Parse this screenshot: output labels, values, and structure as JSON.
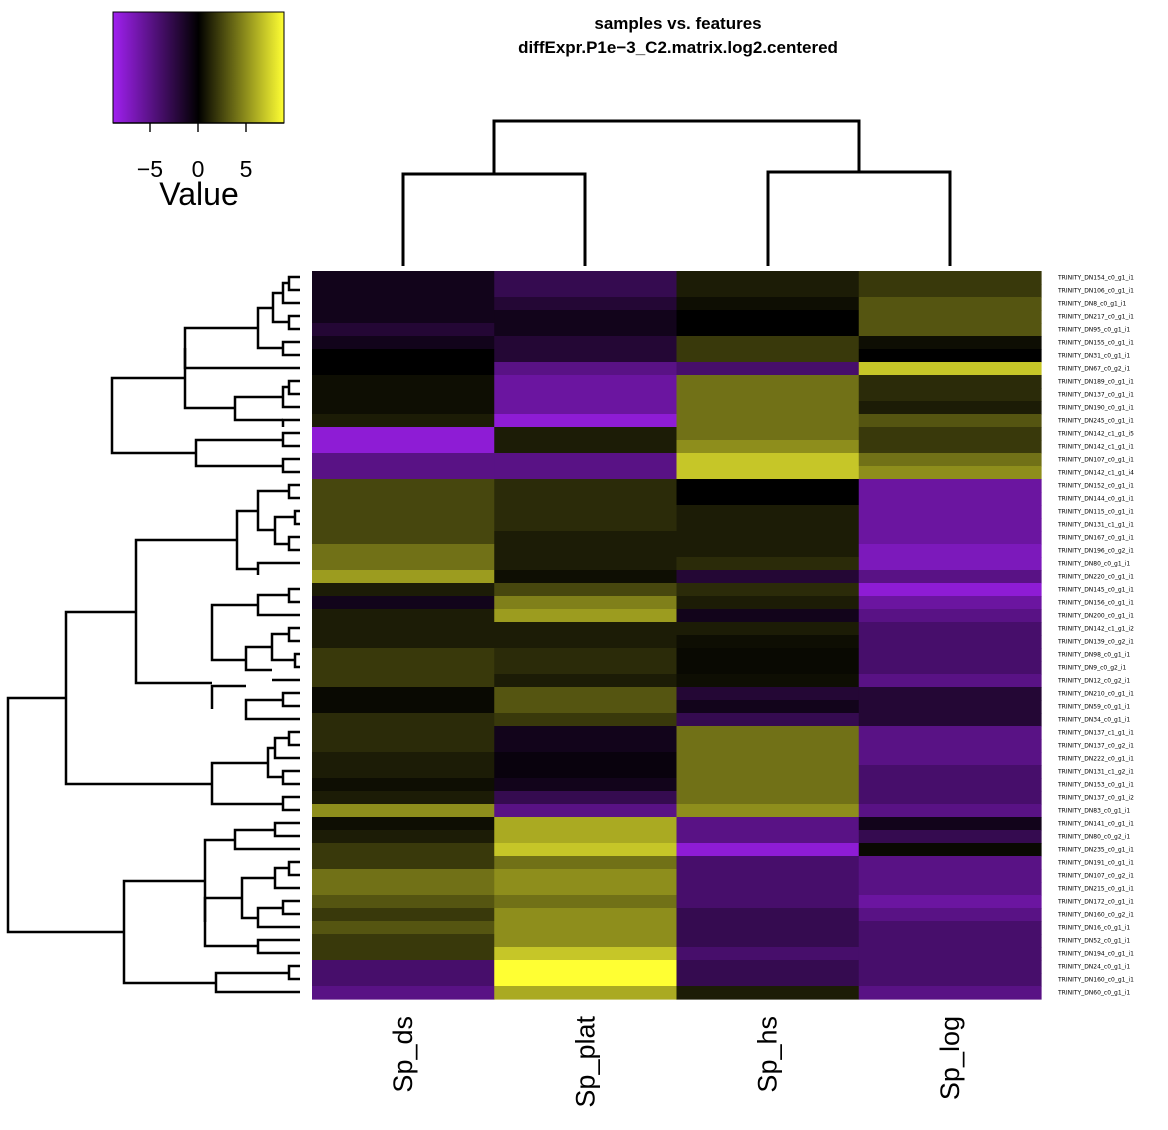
{
  "chart_data": {
    "type": "heatmap",
    "title": "samples vs. features",
    "subtitle": "diffExpr.P1e−3_C2.matrix.log2.centered",
    "columns": [
      "Sp_ds",
      "Sp_plat",
      "Sp_hs",
      "Sp_log"
    ],
    "rows": [
      "TRINITY_DN154_c0_g1_i1",
      "TRINITY_DN106_c0_g1_i1",
      "TRINITY_DN8_c0_g1_i1",
      "TRINITY_DN217_c0_g1_i1",
      "TRINITY_DN95_c0_g1_i1",
      "TRINITY_DN155_c0_g1_i1",
      "TRINITY_DN31_c0_g1_i1",
      "TRINITY_DN67_c0_g2_i1",
      "TRINITY_DN189_c0_g1_i1",
      "TRINITY_DN137_c0_g1_i1",
      "TRINITY_DN190_c0_g1_i1",
      "TRINITY_DN245_c0_g1_i1",
      "TRINITY_DN142_c1_g1_i5",
      "TRINITY_DN142_c1_g1_i1",
      "TRINITY_DN107_c0_g1_i1",
      "TRINITY_DN142_c1_g1_i4",
      "TRINITY_DN152_c0_g1_i1",
      "TRINITY_DN144_c0_g1_i1",
      "TRINITY_DN115_c0_g1_i1",
      "TRINITY_DN131_c1_g1_i1",
      "TRINITY_DN167_c0_g1_i1",
      "TRINITY_DN196_c0_g2_i1",
      "TRINITY_DN80_c0_g1_i1",
      "TRINITY_DN220_c0_g1_i1",
      "TRINITY_DN145_c0_g1_i1",
      "TRINITY_DN156_c0_g1_i1",
      "TRINITY_DN200_c0_g1_i1",
      "TRINITY_DN142_c1_g1_i2",
      "TRINITY_DN139_c0_g2_i1",
      "TRINITY_DN98_c0_g1_i1",
      "TRINITY_DN9_c0_g2_i1",
      "TRINITY_DN12_c0_g2_i1",
      "TRINITY_DN210_c0_g1_i1",
      "TRINITY_DN59_c0_g1_i1",
      "TRINITY_DN34_c0_g1_i1",
      "TRINITY_DN137_c1_g1_i1",
      "TRINITY_DN137_c0_g2_i1",
      "TRINITY_DN222_c0_g1_i1",
      "TRINITY_DN131_c1_g2_i1",
      "TRINITY_DN153_c0_g1_i1",
      "TRINITY_DN137_c0_g1_i2",
      "TRINITY_DN83_c0_g1_i1",
      "TRINITY_DN141_c0_g1_i1",
      "TRINITY_DN80_c0_g2_i1",
      "TRINITY_DN235_c0_g1_i1",
      "TRINITY_DN191_c0_g1_i1",
      "TRINITY_DN107_c0_g2_i1",
      "TRINITY_DN215_c0_g1_i1",
      "TRINITY_DN172_c0_g1_i1",
      "TRINITY_DN160_c0_g2_i1",
      "TRINITY_DN16_c0_g1_i1",
      "TRINITY_DN52_c0_g1_i1",
      "TRINITY_DN194_c0_g1_i1",
      "TRINITY_DN24_c0_g1_i1",
      "TRINITY_DN160_c0_g1_i1",
      "TRINITY_DN60_c0_g1_i1"
    ],
    "values": [
      [
        -1,
        -3,
        1,
        2
      ],
      [
        -1,
        -3,
        1,
        2
      ],
      [
        -1,
        -2,
        0.5,
        3
      ],
      [
        -1,
        -1,
        0,
        3
      ],
      [
        -2,
        -1,
        0,
        3
      ],
      [
        -1,
        -2,
        2,
        0.5
      ],
      [
        0,
        -2,
        2,
        0
      ],
      [
        0,
        -5,
        -4,
        7
      ],
      [
        0.5,
        -6,
        4,
        1.5
      ],
      [
        0.5,
        -6,
        4,
        1.5
      ],
      [
        0.5,
        -6,
        4,
        1
      ],
      [
        1,
        -8,
        4,
        3
      ],
      [
        -8,
        1,
        4,
        2
      ],
      [
        -8,
        1,
        5,
        2
      ],
      [
        -5,
        -5,
        7,
        4
      ],
      [
        -5,
        -5,
        7,
        5
      ],
      [
        2.5,
        1.5,
        0,
        -6
      ],
      [
        2.5,
        1.5,
        0,
        -6
      ],
      [
        2.5,
        1.5,
        1,
        -6
      ],
      [
        2.5,
        1.5,
        1,
        -6
      ],
      [
        2.5,
        1,
        1,
        -6
      ],
      [
        4,
        1,
        1,
        -7
      ],
      [
        4,
        1,
        1.5,
        -7
      ],
      [
        5.5,
        0.5,
        -2,
        -5
      ],
      [
        1,
        2.5,
        1.5,
        -8
      ],
      [
        -1,
        4.5,
        1,
        -6
      ],
      [
        1,
        5.5,
        -1,
        -5
      ],
      [
        1,
        1,
        1,
        -4
      ],
      [
        1,
        1,
        0.5,
        -4
      ],
      [
        2,
        1.5,
        0.3,
        -4
      ],
      [
        2,
        1.5,
        0.3,
        -4
      ],
      [
        2,
        1,
        0.5,
        -5
      ],
      [
        0.3,
        3,
        -2,
        -2
      ],
      [
        0.3,
        3,
        -1,
        -2
      ],
      [
        1.5,
        2,
        -3,
        -2
      ],
      [
        1.5,
        -1,
        4,
        -5
      ],
      [
        1.5,
        -1,
        4,
        -5
      ],
      [
        1,
        -0.5,
        4,
        -5
      ],
      [
        1,
        -0.5,
        4,
        -4
      ],
      [
        0.5,
        -1,
        4,
        -4
      ],
      [
        1,
        -3,
        4,
        -4
      ],
      [
        5,
        -5,
        5,
        -5
      ],
      [
        0.5,
        6,
        -5,
        -1
      ],
      [
        1,
        6,
        -5,
        -3
      ],
      [
        2,
        7,
        -8,
        0.3
      ],
      [
        2,
        4,
        -4,
        -5
      ],
      [
        4,
        5,
        -4,
        -5
      ],
      [
        4,
        5,
        -4,
        -5
      ],
      [
        3,
        4,
        -4,
        -6
      ],
      [
        2,
        5,
        -3,
        -5
      ],
      [
        3,
        5,
        -3,
        -4
      ],
      [
        2,
        5,
        -3,
        -4
      ],
      [
        2,
        7,
        -4,
        -4
      ],
      [
        -4,
        10,
        -3,
        -4
      ],
      [
        -4,
        10,
        -3,
        -4
      ],
      [
        -5,
        6,
        1,
        -5
      ]
    ],
    "color_key": {
      "label": "Value",
      "ticks": [
        "−5",
        "0",
        "5"
      ],
      "range": [
        -9,
        9
      ],
      "low_color": "#a020f0",
      "mid_color": "#000000",
      "high_color": "#ffff33"
    }
  }
}
